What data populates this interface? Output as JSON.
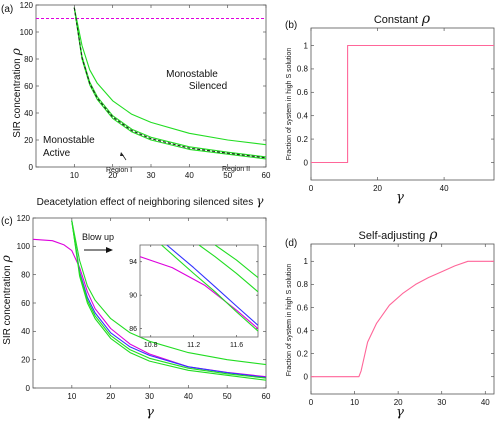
{
  "chart_data": [
    {
      "panel": "(a)",
      "type": "line",
      "xlabel": "Deacetylation effect of neighboring silenced sites",
      "xsymbol": "γ",
      "ylabel": "SIR concentration",
      "ysymbol": "ρ",
      "xlim": [
        0,
        60
      ],
      "ylim": [
        0,
        120
      ],
      "xticks": [
        "10",
        "20",
        "30",
        "40",
        "50",
        "60"
      ],
      "yticks": [
        "0",
        "20",
        "40",
        "60",
        "80",
        "100",
        "120"
      ],
      "grid": false,
      "annotations": [
        "Monostable",
        "Silenced",
        "Monostable",
        "Active",
        "Region I",
        "Region II"
      ],
      "series": [
        {
          "color": "#e000e0",
          "style": "dashed",
          "x": [
            0,
            60
          ],
          "y": [
            110,
            110
          ]
        },
        {
          "color": "#22dd22",
          "x": [
            10,
            12,
            14,
            16,
            20,
            25,
            30,
            40,
            50,
            60
          ],
          "y": [
            118,
            90,
            72,
            62,
            49,
            39,
            33,
            25,
            20,
            16.5
          ]
        },
        {
          "color": "#22dd22",
          "x": [
            10,
            12,
            14,
            16,
            20,
            25,
            30,
            40,
            50,
            60
          ],
          "y": [
            118,
            82,
            63,
            52,
            38,
            28,
            22,
            15,
            11,
            7.5
          ]
        },
        {
          "color": "#22dd22",
          "x": [
            10,
            12,
            14,
            16,
            20,
            25,
            30,
            40,
            50,
            60
          ],
          "y": [
            118,
            80,
            61,
            50,
            36,
            26,
            20,
            13,
            9.5,
            6
          ]
        },
        {
          "color": "#222222",
          "style": "dashed",
          "x": [
            10,
            12,
            14,
            16,
            20,
            25,
            30,
            40,
            50,
            60
          ],
          "y": [
            118,
            81,
            62,
            51,
            37,
            27,
            21,
            14,
            10.2,
            6.8
          ]
        }
      ]
    },
    {
      "panel": "(b)",
      "type": "line",
      "title": "Constant",
      "title_symbol": "ρ",
      "xsymbol": "γ",
      "ylabel": "Fraction of system in high S solution",
      "xlim": [
        0,
        55
      ],
      "ylim": [
        -0.15,
        1.15
      ],
      "xticks": [
        "0",
        "20",
        "40"
      ],
      "yticks": [
        "0",
        "0.2",
        "0.4",
        "0.6",
        "0.8",
        "1"
      ],
      "series": [
        {
          "color": "#ff6699",
          "x": [
            0,
            11,
            11,
            55
          ],
          "y": [
            0,
            0,
            1,
            1
          ]
        }
      ]
    },
    {
      "panel": "(c)",
      "type": "line",
      "xsymbol": "γ",
      "ylabel": "SIR concentration",
      "ysymbol": "ρ",
      "xlim": [
        0,
        60
      ],
      "ylim": [
        0,
        120
      ],
      "xticks": [
        "10",
        "20",
        "30",
        "40",
        "50",
        "60"
      ],
      "yticks": [
        "0",
        "20",
        "40",
        "60",
        "80",
        "100",
        "120"
      ],
      "annotation": "Blow up",
      "series": [
        {
          "color": "#dd00dd",
          "x": [
            0,
            5,
            8,
            10,
            12,
            14,
            16,
            20,
            25,
            30,
            40,
            50,
            60
          ],
          "y": [
            105,
            104,
            101,
            97,
            85,
            68,
            56,
            42,
            31,
            24,
            15,
            11,
            8
          ]
        },
        {
          "color": "#3333ff",
          "x": [
            10,
            12,
            14,
            16,
            20,
            25,
            30,
            40,
            50,
            60
          ],
          "y": [
            118,
            82,
            64,
            53,
            39,
            29,
            23,
            15,
            10.8,
            7.5
          ]
        },
        {
          "color": "#22dd22",
          "x": [
            10,
            12,
            14,
            16,
            20,
            25,
            30,
            40,
            50,
            60
          ],
          "y": [
            118,
            90,
            72,
            62,
            49,
            39,
            33,
            25,
            20,
            16.5
          ]
        },
        {
          "color": "#22dd22",
          "x": [
            10,
            12,
            14,
            16,
            20,
            25,
            30,
            40,
            50,
            60
          ],
          "y": [
            118,
            81,
            62,
            51,
            37,
            27,
            21,
            14,
            10,
            7
          ]
        },
        {
          "color": "#22dd22",
          "x": [
            10,
            12,
            14,
            16,
            20,
            25,
            30,
            40,
            50,
            60
          ],
          "y": [
            118,
            79,
            60,
            49,
            35,
            25,
            19,
            12.5,
            9,
            5.5
          ]
        }
      ],
      "inset": {
        "xlim": [
          10.7,
          11.8
        ],
        "ylim": [
          85,
          96
        ],
        "xticks": [
          "10.8",
          "11.2",
          "11.6"
        ],
        "yticks": [
          "86",
          "90",
          "94"
        ],
        "series": [
          {
            "color": "#dd00dd",
            "x": [
              10.7,
              11.0,
              11.3,
              11.6,
              11.8
            ],
            "y": [
              94.6,
              93.3,
              91.2,
              88.2,
              86.0
            ]
          },
          {
            "color": "#3333ff",
            "x": [
              10.95,
              11.2,
              11.4,
              11.6,
              11.8
            ],
            "y": [
              96,
              93.3,
              91.0,
              88.7,
              86.4
            ]
          },
          {
            "color": "#22dd22",
            "x": [
              10.9,
              11.2,
              11.4,
              11.6,
              11.8
            ],
            "y": [
              96,
              92.6,
              90.4,
              88.0,
              85.7
            ]
          },
          {
            "color": "#22dd22",
            "x": [
              11.25,
              11.4,
              11.6,
              11.8
            ],
            "y": [
              96,
              94.6,
              92.6,
              90.4
            ]
          },
          {
            "color": "#22dd22",
            "x": [
              11.4,
              11.6,
              11.8
            ],
            "y": [
              96,
              94.2,
              92.1
            ]
          }
        ]
      }
    },
    {
      "panel": "(d)",
      "type": "line",
      "title": "Self-adjusting",
      "title_symbol": "ρ",
      "xsymbol": "γ",
      "ylabel": "Fraction of system in high S solution",
      "xlim": [
        0,
        42
      ],
      "ylim": [
        -0.15,
        1.15
      ],
      "xticks": [
        "0",
        "10",
        "20",
        "30",
        "40"
      ],
      "yticks": [
        "0",
        "0.2",
        "0.4",
        "0.6",
        "0.8",
        "1"
      ],
      "series": [
        {
          "color": "#ff6699",
          "x": [
            0,
            11,
            11.5,
            13,
            15,
            18,
            21,
            24,
            27,
            30,
            33,
            36,
            42
          ],
          "y": [
            0,
            0,
            0.05,
            0.3,
            0.46,
            0.62,
            0.72,
            0.8,
            0.86,
            0.91,
            0.96,
            1,
            1
          ]
        }
      ]
    }
  ]
}
